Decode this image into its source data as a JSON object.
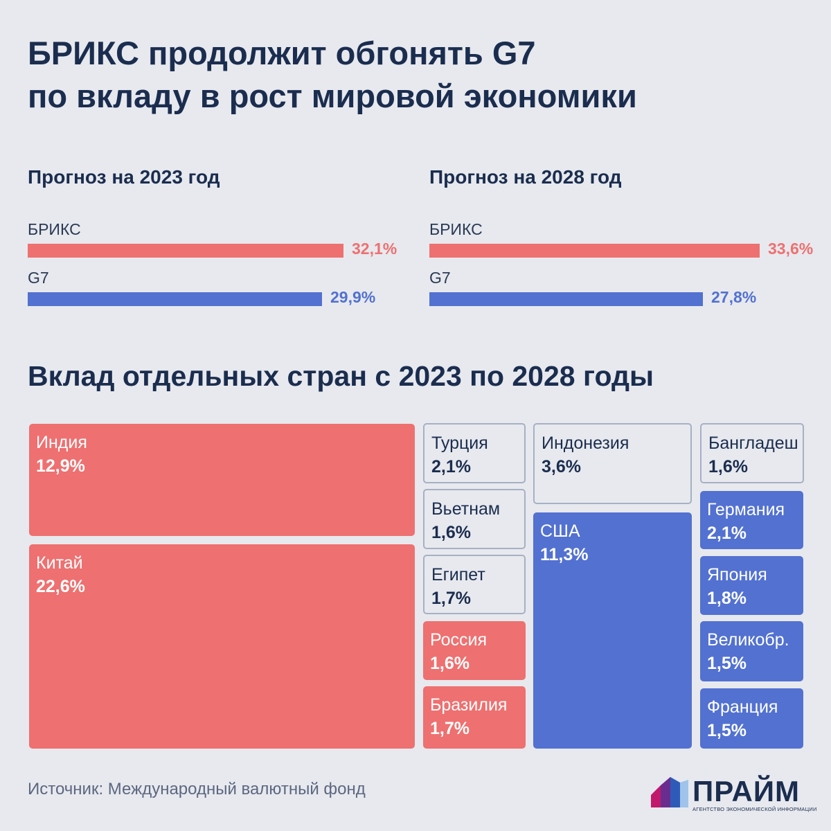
{
  "title": {
    "line1": "БРИКС продолжит обгонять G7",
    "line2": "по вкладу в рост мировой экономики"
  },
  "colors": {
    "brics": "#ee7070",
    "g7": "#5271d1",
    "other_border": "#a6b0c4",
    "text": "#1b2d4f"
  },
  "chart_data": [
    {
      "type": "bar",
      "orientation": "horizontal",
      "title": "Прогноз на 2023 год",
      "categories": [
        "БРИКС",
        "G7"
      ],
      "values": [
        32.1,
        29.9
      ],
      "value_labels": [
        "32,1%",
        "29,9%"
      ],
      "unit": "%",
      "xlim": [
        0,
        35
      ]
    },
    {
      "type": "bar",
      "orientation": "horizontal",
      "title": "Прогноз на 2028 год",
      "categories": [
        "БРИКС",
        "G7"
      ],
      "values": [
        33.6,
        27.8
      ],
      "value_labels": [
        "33,6%",
        "27,8%"
      ],
      "unit": "%",
      "xlim": [
        0,
        35
      ]
    },
    {
      "type": "treemap",
      "title": "Вклад отдельных стран с 2023 по 2028 годы",
      "unit": "%",
      "items": [
        {
          "name": "Индия",
          "value": 12.9,
          "label": "12,9%",
          "group": "brics"
        },
        {
          "name": "Китай",
          "value": 22.6,
          "label": "22,6%",
          "group": "brics"
        },
        {
          "name": "Турция",
          "value": 2.1,
          "label": "2,1%",
          "group": "other"
        },
        {
          "name": "Вьетнам",
          "value": 1.6,
          "label": "1,6%",
          "group": "other"
        },
        {
          "name": "Египет",
          "value": 1.7,
          "label": "1,7%",
          "group": "other"
        },
        {
          "name": "Россия",
          "value": 1.6,
          "label": "1,6%",
          "group": "brics"
        },
        {
          "name": "Бразилия",
          "value": 1.7,
          "label": "1,7%",
          "group": "brics"
        },
        {
          "name": "Индонезия",
          "value": 3.6,
          "label": "3,6%",
          "group": "other"
        },
        {
          "name": "США",
          "value": 11.3,
          "label": "11,3%",
          "group": "g7"
        },
        {
          "name": "Бангладеш",
          "value": 1.6,
          "label": "1,6%",
          "group": "other"
        },
        {
          "name": "Германия",
          "value": 2.1,
          "label": "2,1%",
          "group": "g7"
        },
        {
          "name": "Япония",
          "value": 1.8,
          "label": "1,8%",
          "group": "g7"
        },
        {
          "name": "Великобр.",
          "value": 1.5,
          "label": "1,5%",
          "group": "g7"
        },
        {
          "name": "Франция",
          "value": 1.5,
          "label": "1,5%",
          "group": "g7"
        }
      ]
    }
  ],
  "source": "Источник: Международный валютный фонд",
  "logo": {
    "name": "ПРАЙМ",
    "subtitle": "АГЕНТСТВО ЭКОНОМИЧЕСКОЙ ИНФОРМАЦИИ"
  }
}
